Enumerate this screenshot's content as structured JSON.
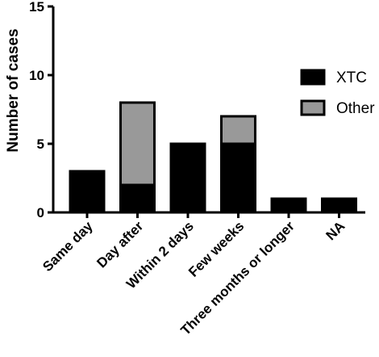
{
  "chart_data": {
    "type": "bar",
    "stacked": true,
    "categories": [
      "Same day",
      "Day after",
      "Within 2 days",
      "Few weeks",
      "Three months or longer",
      "NA"
    ],
    "series": [
      {
        "name": "XTC",
        "values": [
          3,
          2,
          5,
          5,
          1,
          1
        ],
        "color": "#000000"
      },
      {
        "name": "Other",
        "values": [
          0,
          6,
          0,
          2,
          0,
          0
        ],
        "color": "#999999"
      }
    ],
    "title": "",
    "xlabel": "",
    "ylabel": "Number of cases",
    "ylim": [
      0,
      15
    ],
    "yticks": [
      0,
      5,
      10,
      15
    ],
    "grid": false,
    "legend_position": "right"
  }
}
